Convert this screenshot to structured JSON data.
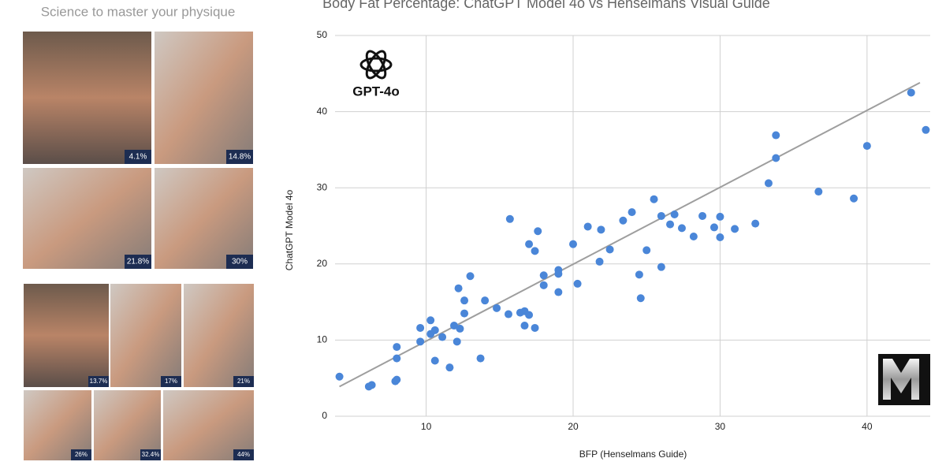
{
  "chart_data": {
    "type": "scatter",
    "title": "Body Fat Percentage: ChatGPT Model 4o vs Henselmans Visual Guide",
    "x_label": "BFP (Henselmans Guide)",
    "y_label": "ChatGPT Model 4o",
    "color": "#4a86d8",
    "trendline_color": "#9e9e9e",
    "x": [
      4.1,
      6.1,
      6.3,
      7.9,
      8.0,
      8.0,
      8.0,
      9.6,
      9.6,
      10.3,
      10.3,
      10.6,
      10.6,
      11.1,
      11.6,
      11.9,
      12.1,
      12.2,
      12.3,
      12.6,
      12.6,
      13.0,
      13.7,
      14.0,
      14.8,
      15.6,
      15.7,
      16.4,
      16.7,
      16.7,
      17.0,
      17.0,
      17.4,
      17.4,
      17.6,
      18.0,
      18.0,
      19.0,
      19.0,
      19.0,
      20.0,
      20.3,
      21.0,
      21.8,
      21.9,
      22.5,
      23.4,
      24.0,
      24.5,
      24.6,
      25.0,
      25.5,
      26.0,
      26.0,
      26.6,
      26.9,
      27.4,
      28.2,
      28.8,
      29.6,
      30.0,
      30.0,
      31.0,
      32.4,
      33.3,
      33.8,
      33.8,
      36.7,
      39.1,
      40.0,
      43.0,
      44.0
    ],
    "values": [
      5.2,
      3.9,
      4.1,
      4.6,
      4.8,
      7.6,
      9.1,
      9.8,
      11.6,
      12.6,
      10.8,
      11.3,
      7.3,
      10.4,
      6.4,
      11.9,
      9.8,
      16.8,
      11.5,
      13.5,
      15.2,
      18.4,
      7.6,
      15.2,
      14.2,
      13.4,
      25.9,
      13.6,
      11.9,
      13.8,
      13.3,
      22.6,
      21.7,
      11.6,
      24.3,
      18.5,
      17.2,
      19.2,
      18.7,
      16.3,
      22.6,
      17.4,
      24.9,
      20.3,
      24.5,
      21.9,
      25.7,
      26.8,
      18.6,
      15.5,
      21.8,
      28.5,
      19.6,
      26.3,
      25.2,
      26.5,
      24.7,
      23.6,
      26.3,
      24.8,
      26.2,
      23.5,
      24.6,
      25.3,
      30.6,
      33.9,
      36.9,
      29.5,
      28.6,
      35.5,
      42.5,
      37.6
    ],
    "trendline": {
      "x": [
        4.1,
        43.6
      ],
      "y": [
        3.9,
        43.8
      ]
    },
    "xlim": [
      3.8,
      44.3
    ],
    "ylim": [
      0,
      50
    ],
    "xticks": [
      10,
      20,
      30,
      40
    ],
    "yticks": [
      0,
      10,
      20,
      30,
      40,
      50
    ],
    "grid": true
  },
  "logo_text": "GPT-4o",
  "photo_guide": {
    "tagline": "Science to master your physique",
    "labels": [
      "4.1%",
      "14.8%",
      "21.8%",
      "30%",
      "13.7%",
      "17%",
      "21%",
      "26%",
      "32.4%",
      "44%"
    ]
  }
}
